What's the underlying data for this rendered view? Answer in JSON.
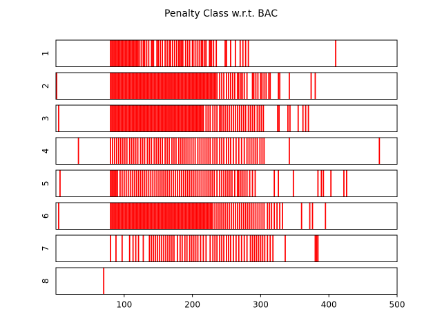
{
  "chart_data": {
    "type": "bar",
    "title": "Penalty Class w.r.t. BAC",
    "xlim": [
      0,
      500
    ],
    "x_ticks": [
      100,
      200,
      300,
      400,
      500
    ],
    "bar_color": "#ff0000",
    "rows": [
      {
        "label": "1",
        "x": [
          80,
          82,
          84,
          86,
          88,
          90,
          92,
          94,
          96,
          98,
          100,
          102,
          104,
          106,
          108,
          110,
          112,
          114,
          116,
          118,
          120,
          122,
          125,
          128,
          130,
          133,
          136,
          140,
          141,
          143,
          148,
          150,
          153,
          156,
          160,
          163,
          166,
          168,
          171,
          174,
          177,
          180,
          182,
          184,
          186,
          190,
          193,
          196,
          200,
          201,
          204,
          207,
          210,
          213,
          215,
          218,
          220,
          225,
          226,
          228,
          231,
          235,
          248,
          250,
          256,
          263,
          270,
          274,
          278,
          282,
          410
        ]
      },
      {
        "label": "2",
        "x": [
          1,
          80,
          82,
          84,
          86,
          88,
          90,
          92,
          94,
          96,
          98,
          100,
          102,
          104,
          106,
          108,
          110,
          112,
          114,
          116,
          118,
          120,
          122,
          124,
          126,
          128,
          130,
          132,
          134,
          136,
          138,
          140,
          142,
          144,
          146,
          148,
          150,
          152,
          154,
          156,
          158,
          160,
          162,
          164,
          166,
          168,
          170,
          172,
          174,
          176,
          178,
          180,
          182,
          184,
          186,
          188,
          190,
          192,
          194,
          196,
          198,
          200,
          202,
          204,
          206,
          208,
          210,
          212,
          214,
          216,
          218,
          220,
          222,
          224,
          226,
          228,
          230,
          232,
          234,
          236,
          240,
          243,
          246,
          250,
          253,
          256,
          259,
          262,
          266,
          268,
          271,
          273,
          276,
          280,
          288,
          290,
          293,
          296,
          300,
          302,
          305,
          308,
          312,
          314,
          326,
          328,
          342,
          374,
          380
        ]
      },
      {
        "label": "3",
        "x": [
          4,
          80,
          82,
          84,
          86,
          88,
          90,
          92,
          94,
          96,
          98,
          100,
          102,
          104,
          106,
          108,
          110,
          112,
          114,
          116,
          118,
          120,
          122,
          124,
          126,
          128,
          130,
          132,
          134,
          136,
          138,
          140,
          142,
          144,
          146,
          148,
          150,
          152,
          154,
          156,
          158,
          160,
          162,
          164,
          166,
          168,
          170,
          172,
          174,
          176,
          178,
          180,
          182,
          184,
          186,
          188,
          190,
          192,
          194,
          196,
          198,
          200,
          202,
          204,
          206,
          208,
          210,
          212,
          214,
          216,
          220,
          223,
          226,
          230,
          233,
          236,
          240,
          242,
          245,
          248,
          251,
          254,
          257,
          260,
          263,
          266,
          269,
          272,
          275,
          278,
          282,
          285,
          288,
          291,
          295,
          298,
          301,
          304,
          325,
          327,
          340,
          343,
          355,
          362,
          366,
          370
        ]
      },
      {
        "label": "4",
        "x": [
          33,
          80,
          83,
          86,
          89,
          92,
          95,
          98,
          101,
          104,
          108,
          111,
          114,
          117,
          120,
          124,
          127,
          130,
          134,
          137,
          140,
          144,
          147,
          150,
          153,
          156,
          160,
          163,
          166,
          170,
          173,
          176,
          180,
          183,
          186,
          189,
          192,
          195,
          198,
          201,
          204,
          208,
          211,
          214,
          217,
          220,
          223,
          226,
          230,
          233,
          236,
          240,
          243,
          246,
          250,
          253,
          256,
          260,
          264,
          268,
          272,
          276,
          280,
          283,
          286,
          289,
          292,
          295,
          299,
          302,
          305,
          342,
          474
        ]
      },
      {
        "label": "5",
        "x": [
          6,
          80,
          82,
          84,
          86,
          88,
          90,
          94,
          97,
          100,
          103,
          106,
          109,
          112,
          115,
          118,
          121,
          124,
          127,
          130,
          133,
          136,
          139,
          142,
          145,
          148,
          151,
          154,
          157,
          160,
          163,
          166,
          169,
          172,
          175,
          178,
          181,
          184,
          187,
          190,
          193,
          196,
          199,
          202,
          205,
          208,
          211,
          214,
          217,
          220,
          223,
          226,
          229,
          232,
          236,
          240,
          243,
          246,
          249,
          252,
          255,
          258,
          262,
          266,
          268,
          271,
          274,
          277,
          280,
          284,
          288,
          292,
          320,
          326,
          348,
          384,
          389,
          392,
          403,
          422,
          426
        ]
      },
      {
        "label": "6",
        "x": [
          4,
          80,
          82,
          84,
          86,
          88,
          90,
          92,
          94,
          96,
          98,
          100,
          102,
          104,
          106,
          108,
          110,
          112,
          114,
          116,
          118,
          120,
          122,
          124,
          126,
          128,
          130,
          132,
          134,
          136,
          138,
          140,
          142,
          144,
          146,
          148,
          150,
          152,
          154,
          156,
          158,
          160,
          162,
          164,
          166,
          168,
          170,
          172,
          174,
          176,
          178,
          180,
          182,
          184,
          186,
          188,
          190,
          192,
          194,
          196,
          198,
          200,
          202,
          204,
          206,
          208,
          210,
          212,
          214,
          216,
          218,
          220,
          222,
          224,
          226,
          228,
          230,
          233,
          236,
          239,
          242,
          245,
          248,
          251,
          254,
          257,
          260,
          263,
          266,
          269,
          272,
          275,
          278,
          281,
          284,
          287,
          290,
          293,
          296,
          299,
          302,
          305,
          310,
          313,
          316,
          320,
          324,
          328,
          332,
          360,
          372,
          376,
          395
        ]
      },
      {
        "label": "7",
        "x": [
          80,
          88,
          97,
          108,
          113,
          117,
          121,
          128,
          137,
          140,
          143,
          146,
          149,
          152,
          155,
          158,
          161,
          164,
          167,
          170,
          173,
          178,
          182,
          185,
          189,
          192,
          196,
          199,
          202,
          205,
          208,
          212,
          216,
          220,
          226,
          230,
          233,
          236,
          240,
          243,
          246,
          250,
          253,
          256,
          260,
          264,
          268,
          272,
          276,
          280,
          285,
          288,
          291,
          294,
          297,
          300,
          303,
          306,
          310,
          314,
          318,
          336,
          380,
          382,
          384
        ]
      },
      {
        "label": "8",
        "x": [
          70
        ]
      }
    ]
  }
}
